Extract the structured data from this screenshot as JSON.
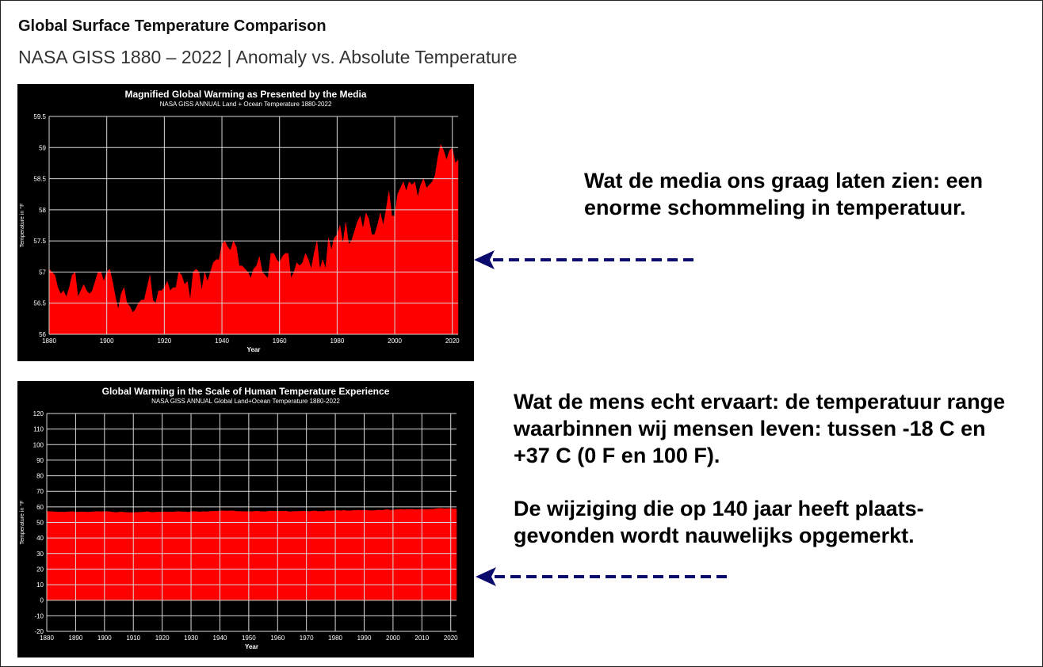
{
  "header": {
    "title": "Global Surface Temperature Comparison",
    "subtitle": "NASA GISS 1880 – 2022 | Anomaly vs. Absolute Temperature"
  },
  "callouts": {
    "top": "Wat de media ons graag laten zien: een enorme schommeling in temperatuur.",
    "bottom_1": "Wat de mens echt ervaart: de temperatuur range waarbinnen wij mensen leven: tussen -18 C en +37 C (0 F en 100 F).",
    "bottom_2": "De wijziging die op 140 jaar heeft plaats-gevonden wordt nauwelijks opgemerkt."
  },
  "colors": {
    "fill": "#ff0000",
    "background": "#000000",
    "grid": "#d8d8d8",
    "text": "#ffffff",
    "arrow": "#0b0b6e"
  },
  "chart_data": [
    {
      "type": "area",
      "title": "Magnified Global Warming as Presented by the Media",
      "subtitle": "NASA GISS ANNUAL Land + Ocean Temperature 1880-2022",
      "xlabel": "Year",
      "ylabel": "Temperature in °F",
      "xlim": [
        1880,
        2022
      ],
      "ylim": [
        56,
        59.5
      ],
      "x_ticks": [
        1880,
        1900,
        1920,
        1940,
        1960,
        1980,
        2000,
        2020
      ],
      "y_ticks": [
        56,
        56.5,
        57,
        57.5,
        58,
        58.5,
        59,
        59.5
      ],
      "y_tick_labels": [
        "56",
        "56.5",
        "57",
        "57.5",
        "58",
        "58.5",
        "59",
        "59.5"
      ],
      "grid": true,
      "x": [
        1880,
        1881,
        1882,
        1883,
        1884,
        1885,
        1886,
        1887,
        1888,
        1889,
        1890,
        1891,
        1892,
        1893,
        1894,
        1895,
        1896,
        1897,
        1898,
        1899,
        1900,
        1901,
        1902,
        1903,
        1904,
        1905,
        1906,
        1907,
        1908,
        1909,
        1910,
        1911,
        1912,
        1913,
        1914,
        1915,
        1916,
        1917,
        1918,
        1919,
        1920,
        1921,
        1922,
        1923,
        1924,
        1925,
        1926,
        1927,
        1928,
        1929,
        1930,
        1931,
        1932,
        1933,
        1934,
        1935,
        1936,
        1937,
        1938,
        1939,
        1940,
        1941,
        1942,
        1943,
        1944,
        1945,
        1946,
        1947,
        1948,
        1949,
        1950,
        1951,
        1952,
        1953,
        1954,
        1955,
        1956,
        1957,
        1958,
        1959,
        1960,
        1961,
        1962,
        1963,
        1964,
        1965,
        1966,
        1967,
        1968,
        1969,
        1970,
        1971,
        1972,
        1973,
        1974,
        1975,
        1976,
        1977,
        1978,
        1979,
        1980,
        1981,
        1982,
        1983,
        1984,
        1985,
        1986,
        1987,
        1988,
        1989,
        1990,
        1991,
        1992,
        1993,
        1994,
        1995,
        1996,
        1997,
        1998,
        1999,
        2000,
        2001,
        2002,
        2003,
        2004,
        2005,
        2006,
        2007,
        2008,
        2009,
        2010,
        2011,
        2012,
        2013,
        2014,
        2015,
        2016,
        2017,
        2018,
        2019,
        2020,
        2021,
        2022
      ],
      "values": [
        57.05,
        57.0,
        56.95,
        56.75,
        56.65,
        56.7,
        56.6,
        56.75,
        56.95,
        57.0,
        56.6,
        56.7,
        56.8,
        56.7,
        56.65,
        56.7,
        56.85,
        57.0,
        57.0,
        56.85,
        57.0,
        57.05,
        56.85,
        56.6,
        56.4,
        56.65,
        56.75,
        56.5,
        56.45,
        56.35,
        56.4,
        56.5,
        56.55,
        56.55,
        56.75,
        56.95,
        56.55,
        56.5,
        56.7,
        56.7,
        56.75,
        56.85,
        56.7,
        56.75,
        56.75,
        57.0,
        56.95,
        56.8,
        56.85,
        56.55,
        57.0,
        57.05,
        57.0,
        56.7,
        57.0,
        56.85,
        57.0,
        57.15,
        57.2,
        57.2,
        57.45,
        57.5,
        57.4,
        57.35,
        57.5,
        57.4,
        57.1,
        57.1,
        57.05,
        57.0,
        56.9,
        57.05,
        57.1,
        57.25,
        57.0,
        56.95,
        56.9,
        57.3,
        57.3,
        57.2,
        57.15,
        57.25,
        57.3,
        57.3,
        56.9,
        57.0,
        57.15,
        57.1,
        57.15,
        57.3,
        57.2,
        57.05,
        57.3,
        57.5,
        57.05,
        57.2,
        57.05,
        57.55,
        57.35,
        57.55,
        57.6,
        57.75,
        57.45,
        57.8,
        57.45,
        57.5,
        57.65,
        57.8,
        57.9,
        57.7,
        57.95,
        57.85,
        57.6,
        57.6,
        57.75,
        57.95,
        57.75,
        58.0,
        58.3,
        57.9,
        57.9,
        58.25,
        58.35,
        58.45,
        58.3,
        58.45,
        58.4,
        58.45,
        58.2,
        58.4,
        58.5,
        58.35,
        58.4,
        58.45,
        58.55,
        58.85,
        59.05,
        58.95,
        58.8,
        58.95,
        59.0,
        58.75,
        58.8
      ]
    },
    {
      "type": "area",
      "title": "Global Warming in the Scale of Human Temperature Experience",
      "subtitle": "NASA GISS ANNUAL Global Land+Ocean Temperature 1880-2022",
      "xlabel": "Year",
      "ylabel": "Temperature in °F",
      "xlim": [
        1880,
        2022
      ],
      "ylim": [
        -20,
        120
      ],
      "x_ticks": [
        1880,
        1890,
        1900,
        1910,
        1920,
        1930,
        1940,
        1950,
        1960,
        1970,
        1980,
        1990,
        2000,
        2010,
        2020
      ],
      "y_ticks": [
        -20,
        -10,
        0,
        10,
        20,
        30,
        40,
        50,
        60,
        70,
        80,
        90,
        100,
        110,
        120
      ],
      "y_tick_labels": [
        "-20",
        "-10",
        "0",
        "10",
        "20",
        "30",
        "40",
        "50",
        "60",
        "70",
        "80",
        "90",
        "100",
        "110",
        "120"
      ],
      "grid": true,
      "same_series_as": 0
    }
  ]
}
